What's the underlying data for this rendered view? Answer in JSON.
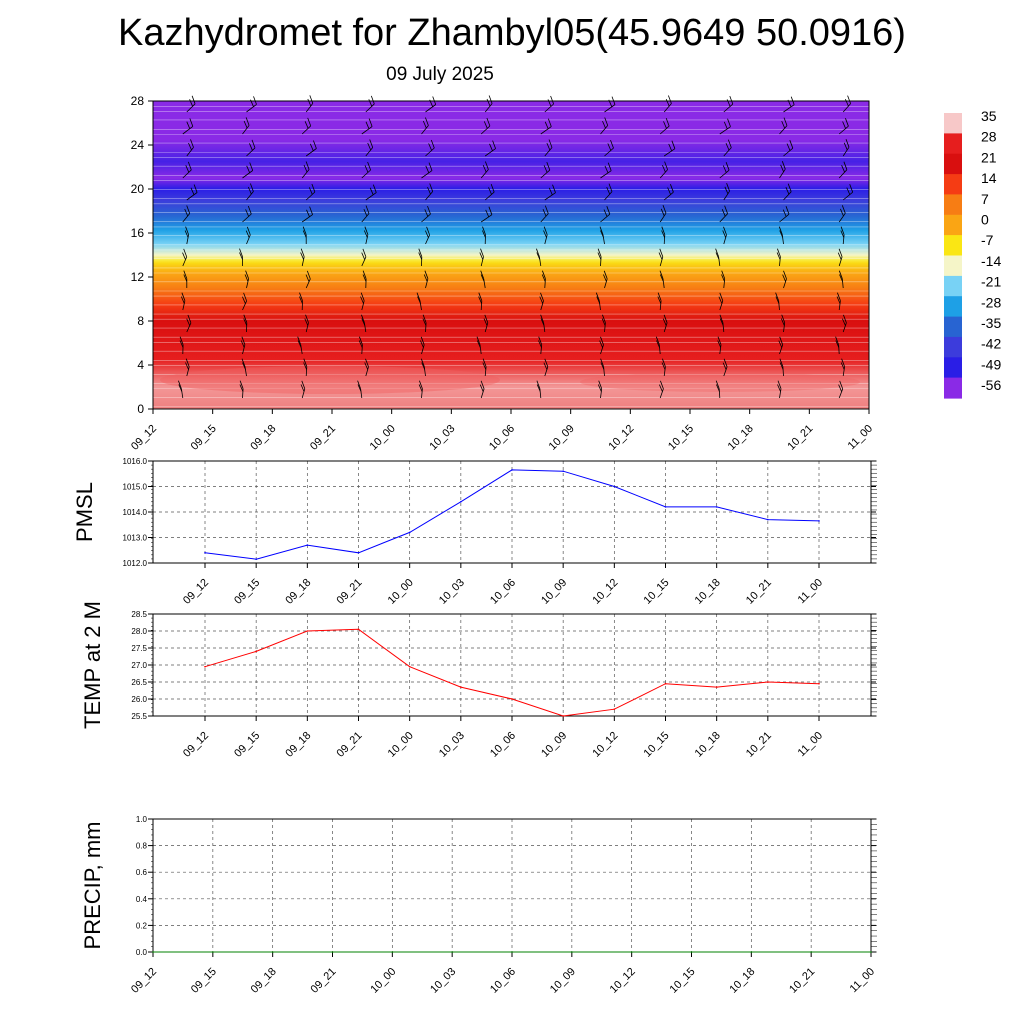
{
  "header": {
    "title": "Kazhydromet for Zhambyl05(45.9649 50.0916)",
    "date": "09 July 2025"
  },
  "chart_data": [
    {
      "type": "heatmap",
      "name": "vertical-temperature-cross-section",
      "x_labels": [
        "09_12",
        "09_15",
        "09_18",
        "09_21",
        "10_00",
        "10_03",
        "10_06",
        "10_09",
        "10_12",
        "10_15",
        "10_18",
        "10_21",
        "11_00"
      ],
      "y_ticks": [
        "0",
        "4",
        "8",
        "12",
        "16",
        "20",
        "24",
        "28"
      ],
      "ylim": [
        0,
        28
      ],
      "colorbar": {
        "labels": [
          "35",
          "28",
          "21",
          "14",
          "7",
          "0",
          "-7",
          "-14",
          "-21",
          "-28",
          "-35",
          "-42",
          "-49",
          "-56"
        ],
        "stops": [
          "#f7c8c8",
          "#e61e1e",
          "#d90f0f",
          "#f53c14",
          "#f77d14",
          "#faa514",
          "#fae614",
          "#f5f5c8",
          "#78d2f5",
          "#1ea0e6",
          "#2864d2",
          "#3c3cdc",
          "#2a1ee6",
          "#8a2ae6"
        ]
      },
      "temperature_profile": [
        {
          "h": 0,
          "t": 32
        },
        {
          "h": 2,
          "t": 33
        },
        {
          "h": 4,
          "t": 29
        },
        {
          "h": 8,
          "t": 21
        },
        {
          "h": 11,
          "t": 7
        },
        {
          "h": 13.2,
          "t": -5
        },
        {
          "h": 14,
          "t": -14
        },
        {
          "h": 15,
          "t": -21
        },
        {
          "h": 17,
          "t": -32
        },
        {
          "h": 19,
          "t": -42
        },
        {
          "h": 21,
          "t": -56
        },
        {
          "h": 22.5,
          "t": -51
        },
        {
          "h": 24.5,
          "t": -56
        },
        {
          "h": 28,
          "t": -56
        }
      ],
      "wind_barbs": "present"
    },
    {
      "type": "line",
      "ylabel": "PMSL",
      "x_labels": [
        "09_12",
        "09_15",
        "09_18",
        "09_21",
        "10_00",
        "10_03",
        "10_06",
        "10_09",
        "10_12",
        "10_15",
        "10_18",
        "10_21",
        "11_00"
      ],
      "y_ticks": [
        "1012.0",
        "1013.0",
        "1014.0",
        "1015.0",
        "1016.0"
      ],
      "ylim": [
        1012,
        1016
      ],
      "values": [
        1012.4,
        1012.15,
        1012.7,
        1012.4,
        1013.2,
        1014.4,
        1015.65,
        1015.6,
        1015.0,
        1014.2,
        1014.2,
        1013.7,
        1013.65
      ],
      "color": "#0000ff"
    },
    {
      "type": "line",
      "ylabel": "TEMP at 2 M",
      "x_labels": [
        "09_12",
        "09_15",
        "09_18",
        "09_21",
        "10_00",
        "10_03",
        "10_06",
        "10_09",
        "10_12",
        "10_15",
        "10_18",
        "10_21",
        "11_00"
      ],
      "y_ticks": [
        "25.5",
        "26.0",
        "26.5",
        "27.0",
        "27.5",
        "28.0",
        "28.5"
      ],
      "ylim": [
        25.5,
        28.5
      ],
      "values": [
        26.95,
        27.4,
        28.0,
        28.05,
        26.95,
        26.35,
        26.0,
        25.5,
        25.7,
        26.45,
        26.35,
        26.5,
        26.45
      ],
      "color": "#ff0000"
    },
    {
      "type": "line",
      "ylabel": "PRECIP, mm",
      "x_labels": [
        "09_12",
        "09_15",
        "09_18",
        "09_21",
        "10_00",
        "10_03",
        "10_06",
        "10_09",
        "10_12",
        "10_15",
        "10_18",
        "10_21",
        "11_00"
      ],
      "y_ticks": [
        "0.0",
        "0.2",
        "0.4",
        "0.6",
        "0.8",
        "1.0"
      ],
      "ylim": [
        0,
        1
      ],
      "values": [
        0,
        0,
        0,
        0,
        0,
        0,
        0,
        0,
        0,
        0,
        0,
        0,
        0
      ],
      "color": "#008000"
    }
  ]
}
